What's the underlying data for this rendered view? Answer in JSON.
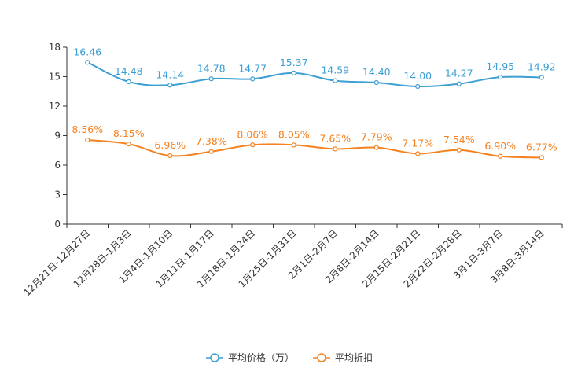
{
  "chart_data": {
    "type": "line",
    "title": "",
    "xlabel": "",
    "ylabel": "",
    "ylim": [
      0,
      18
    ],
    "yticks": [
      "0",
      "3",
      "6",
      "9",
      "12",
      "15",
      "18"
    ],
    "categories": [
      "12月21日-12月27日",
      "12月28日-1月3日",
      "1月4日-1月10日",
      "1月11日-1月17日",
      "1月18日-1月24日",
      "1月25日-1月31日",
      "2月1日-2月7日",
      "2月8日-2月14日",
      "2月15日-2月21日",
      "2月22日-2月28日",
      "3月1日-3月7日",
      "3月8日-3月14日"
    ],
    "series": [
      {
        "name": "平均价格（万）",
        "color": "#3d9fd3",
        "values": [
          16.46,
          14.48,
          14.14,
          14.78,
          14.77,
          15.37,
          14.59,
          14.4,
          14.0,
          14.27,
          14.95,
          14.92
        ],
        "labels": [
          "16.46",
          "14.48",
          "14.14",
          "14.78",
          "14.77",
          "15.37",
          "14.59",
          "14.40",
          "14.00",
          "14.27",
          "14.95",
          "14.92"
        ]
      },
      {
        "name": "平均折扣",
        "color": "#f58220",
        "values": [
          8.56,
          8.15,
          6.96,
          7.38,
          8.06,
          8.05,
          7.65,
          7.79,
          7.17,
          7.54,
          6.9,
          6.77
        ],
        "labels": [
          "8.56%",
          "8.15%",
          "6.96%",
          "7.38%",
          "8.06%",
          "8.05%",
          "7.65%",
          "7.79%",
          "7.17%",
          "7.54%",
          "6.90%",
          "6.77%"
        ]
      }
    ],
    "legend": {
      "position": "bottom-center"
    },
    "grid": false
  }
}
